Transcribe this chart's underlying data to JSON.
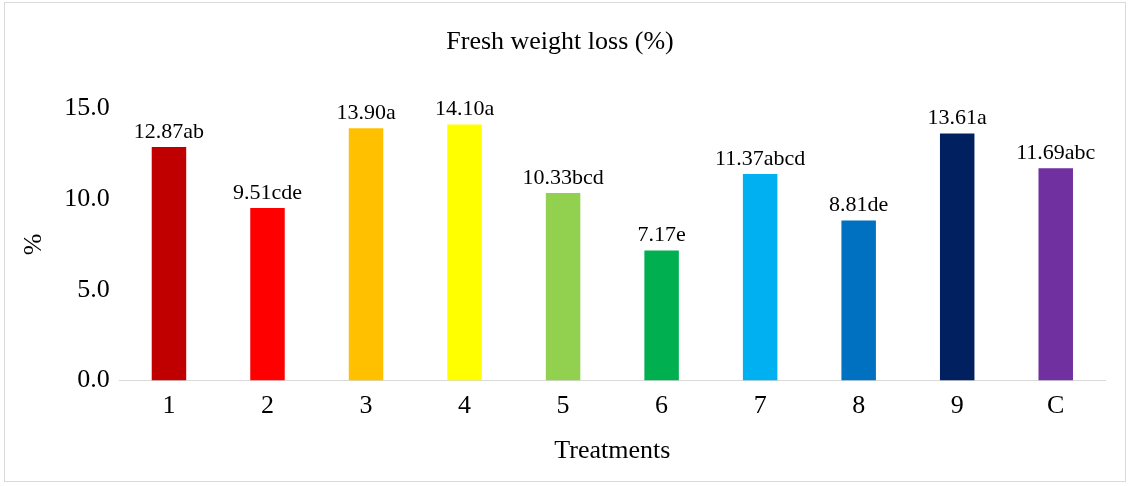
{
  "chart_data": {
    "type": "bar",
    "title": "Fresh weight loss (%)",
    "xlabel": "Treatments",
    "ylabel": "%",
    "categories": [
      "1",
      "2",
      "3",
      "4",
      "5",
      "6",
      "7",
      "8",
      "9",
      "C"
    ],
    "values": [
      12.87,
      9.51,
      13.9,
      14.1,
      10.33,
      7.17,
      11.37,
      8.81,
      13.61,
      11.69
    ],
    "colors": [
      "#c00000",
      "#ff0000",
      "#ffc000",
      "#ffff00",
      "#92d050",
      "#00b050",
      "#00b0f0",
      "#0070c0",
      "#002060",
      "#7030a0"
    ],
    "value_labels": [
      "12.87ab",
      "9.51cde",
      "13.90a",
      "14.10a",
      "10.33bcd",
      "7.17e",
      "11.37abcd",
      "8.81de",
      "13.61a",
      "11.69abc"
    ],
    "ylim": [
      0,
      15
    ],
    "yticks": [
      {
        "value": 0,
        "label": "0.0"
      },
      {
        "value": 5,
        "label": "5.0"
      },
      {
        "value": 10,
        "label": "10.0"
      },
      {
        "value": 15,
        "label": "15.0"
      }
    ],
    "grid": false,
    "legend": false
  }
}
